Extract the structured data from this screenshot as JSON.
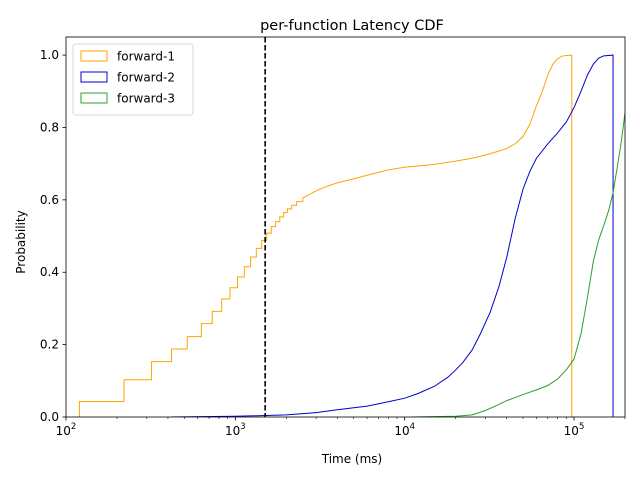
{
  "chart_data": {
    "type": "line",
    "title": "per-function Latency CDF",
    "xlabel": "Time (ms)",
    "ylabel": "Probability",
    "xscale": "log",
    "xlim": [
      100,
      200000
    ],
    "ylim": [
      0,
      1.05
    ],
    "x_ticks": [
      {
        "value": 100,
        "base": "10",
        "exp": "2"
      },
      {
        "value": 1000,
        "base": "10",
        "exp": "3"
      },
      {
        "value": 10000,
        "base": "10",
        "exp": "4"
      },
      {
        "value": 100000,
        "base": "10",
        "exp": "5"
      }
    ],
    "y_ticks": [
      {
        "value": 0.0,
        "label": "0.0"
      },
      {
        "value": 0.2,
        "label": "0.2"
      },
      {
        "value": 0.4,
        "label": "0.4"
      },
      {
        "value": 0.6,
        "label": "0.6"
      },
      {
        "value": 0.8,
        "label": "0.8"
      },
      {
        "value": 1.0,
        "label": "1.0"
      }
    ],
    "reference_line": {
      "x": 1500,
      "style": "dashed",
      "color": "#000000"
    },
    "legend_position": "top-left",
    "grid": false,
    "series": [
      {
        "name": "forward-1",
        "color": "#ffa500",
        "points": [
          [
            120,
            0
          ],
          [
            120,
            0.043
          ],
          [
            220,
            0.043
          ],
          [
            220,
            0.103
          ],
          [
            320,
            0.103
          ],
          [
            320,
            0.153
          ],
          [
            420,
            0.153
          ],
          [
            420,
            0.188
          ],
          [
            520,
            0.188
          ],
          [
            520,
            0.222
          ],
          [
            630,
            0.222
          ],
          [
            630,
            0.258
          ],
          [
            730,
            0.258
          ],
          [
            730,
            0.292
          ],
          [
            830,
            0.292
          ],
          [
            830,
            0.326
          ],
          [
            930,
            0.326
          ],
          [
            930,
            0.357
          ],
          [
            1030,
            0.357
          ],
          [
            1030,
            0.387
          ],
          [
            1130,
            0.387
          ],
          [
            1130,
            0.415
          ],
          [
            1230,
            0.415
          ],
          [
            1230,
            0.442
          ],
          [
            1330,
            0.442
          ],
          [
            1330,
            0.466
          ],
          [
            1430,
            0.466
          ],
          [
            1430,
            0.488
          ],
          [
            1530,
            0.488
          ],
          [
            1530,
            0.508
          ],
          [
            1630,
            0.508
          ],
          [
            1630,
            0.526
          ],
          [
            1730,
            0.526
          ],
          [
            1730,
            0.54
          ],
          [
            1830,
            0.54
          ],
          [
            1830,
            0.553
          ],
          [
            1930,
            0.553
          ],
          [
            1930,
            0.565
          ],
          [
            2030,
            0.565
          ],
          [
            2030,
            0.575
          ],
          [
            2150,
            0.575
          ],
          [
            2150,
            0.585
          ],
          [
            2300,
            0.585
          ],
          [
            2300,
            0.595
          ],
          [
            2500,
            0.595
          ],
          [
            2500,
            0.605
          ],
          [
            3000,
            0.625
          ],
          [
            3500,
            0.638
          ],
          [
            4000,
            0.647
          ],
          [
            5000,
            0.658
          ],
          [
            6000,
            0.668
          ],
          [
            7000,
            0.676
          ],
          [
            8000,
            0.683
          ],
          [
            10000,
            0.69
          ],
          [
            15000,
            0.698
          ],
          [
            20000,
            0.707
          ],
          [
            25000,
            0.715
          ],
          [
            30000,
            0.724
          ],
          [
            35000,
            0.733
          ],
          [
            40000,
            0.742
          ],
          [
            45000,
            0.755
          ],
          [
            50000,
            0.775
          ],
          [
            55000,
            0.81
          ],
          [
            60000,
            0.86
          ],
          [
            65000,
            0.9
          ],
          [
            70000,
            0.945
          ],
          [
            75000,
            0.975
          ],
          [
            80000,
            0.99
          ],
          [
            85000,
            0.997
          ],
          [
            90000,
            0.999
          ],
          [
            97000,
            1.0
          ],
          [
            97000,
            0
          ]
        ]
      },
      {
        "name": "forward-2",
        "color": "#0000cc",
        "points": [
          [
            420,
            0
          ],
          [
            1000,
            0.002
          ],
          [
            1500,
            0.004
          ],
          [
            2000,
            0.006
          ],
          [
            3000,
            0.012
          ],
          [
            4000,
            0.02
          ],
          [
            6000,
            0.03
          ],
          [
            8000,
            0.042
          ],
          [
            10000,
            0.052
          ],
          [
            12000,
            0.065
          ],
          [
            15000,
            0.085
          ],
          [
            18000,
            0.11
          ],
          [
            20000,
            0.13
          ],
          [
            22000,
            0.15
          ],
          [
            25000,
            0.185
          ],
          [
            28000,
            0.23
          ],
          [
            32000,
            0.29
          ],
          [
            36000,
            0.36
          ],
          [
            40000,
            0.44
          ],
          [
            45000,
            0.55
          ],
          [
            50000,
            0.63
          ],
          [
            55000,
            0.68
          ],
          [
            60000,
            0.715
          ],
          [
            70000,
            0.755
          ],
          [
            80000,
            0.785
          ],
          [
            90000,
            0.815
          ],
          [
            100000,
            0.855
          ],
          [
            110000,
            0.9
          ],
          [
            120000,
            0.945
          ],
          [
            130000,
            0.975
          ],
          [
            140000,
            0.992
          ],
          [
            150000,
            0.998
          ],
          [
            170000,
            1.0
          ],
          [
            170000,
            0
          ]
        ]
      },
      {
        "name": "forward-3",
        "color": "#2ca02c",
        "points": [
          [
            11000,
            0
          ],
          [
            20000,
            0.002
          ],
          [
            25000,
            0.006
          ],
          [
            30000,
            0.018
          ],
          [
            35000,
            0.032
          ],
          [
            40000,
            0.045
          ],
          [
            50000,
            0.062
          ],
          [
            60000,
            0.075
          ],
          [
            70000,
            0.087
          ],
          [
            80000,
            0.105
          ],
          [
            90000,
            0.13
          ],
          [
            100000,
            0.16
          ],
          [
            110000,
            0.23
          ],
          [
            120000,
            0.33
          ],
          [
            130000,
            0.43
          ],
          [
            140000,
            0.49
          ],
          [
            150000,
            0.53
          ],
          [
            160000,
            0.57
          ],
          [
            170000,
            0.62
          ],
          [
            180000,
            0.69
          ],
          [
            190000,
            0.76
          ],
          [
            200000,
            0.84
          ]
        ]
      }
    ]
  }
}
